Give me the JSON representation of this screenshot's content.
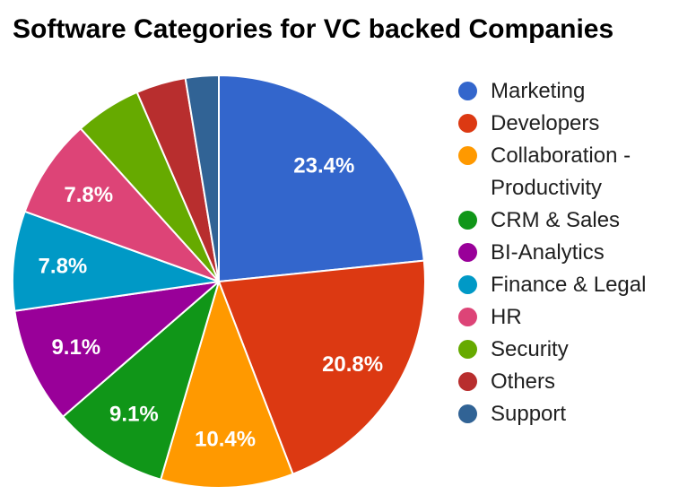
{
  "title": "Software Categories for VC backed Companies",
  "colors": {
    "background": "#ffffff",
    "title_text": "#000000",
    "legend_text": "#1f1f1f",
    "slice_border": "#ffffff",
    "slice_label_text": "#ffffff"
  },
  "chart_data": {
    "type": "pie",
    "title": "Software Categories for VC backed Companies",
    "legend_position": "right",
    "start_angle_deg": 0,
    "direction": "clockwise",
    "units": "%",
    "slices": [
      {
        "label": "Marketing",
        "value": 23.4,
        "display": "23.4%",
        "color": "#3366CC"
      },
      {
        "label": "Developers",
        "value": 20.8,
        "display": "20.8%",
        "color": "#DC3912"
      },
      {
        "label": "Collaboration - Productivity",
        "value": 10.4,
        "display": "10.4%",
        "color": "#FF9900"
      },
      {
        "label": "CRM & Sales",
        "value": 9.1,
        "display": "9.1%",
        "color": "#109618"
      },
      {
        "label": "BI-Analytics",
        "value": 9.1,
        "display": "9.1%",
        "color": "#990099"
      },
      {
        "label": "Finance & Legal",
        "value": 7.8,
        "display": "7.8%",
        "color": "#0099C6"
      },
      {
        "label": "HR",
        "value": 7.8,
        "display": "7.8%",
        "color": "#DD4477"
      },
      {
        "label": "Security",
        "value": 5.2,
        "display": "",
        "color": "#66AA00"
      },
      {
        "label": "Others",
        "value": 3.9,
        "display": "",
        "color": "#B82E2E"
      },
      {
        "label": "Support",
        "value": 2.6,
        "display": "",
        "color": "#316395"
      }
    ]
  }
}
